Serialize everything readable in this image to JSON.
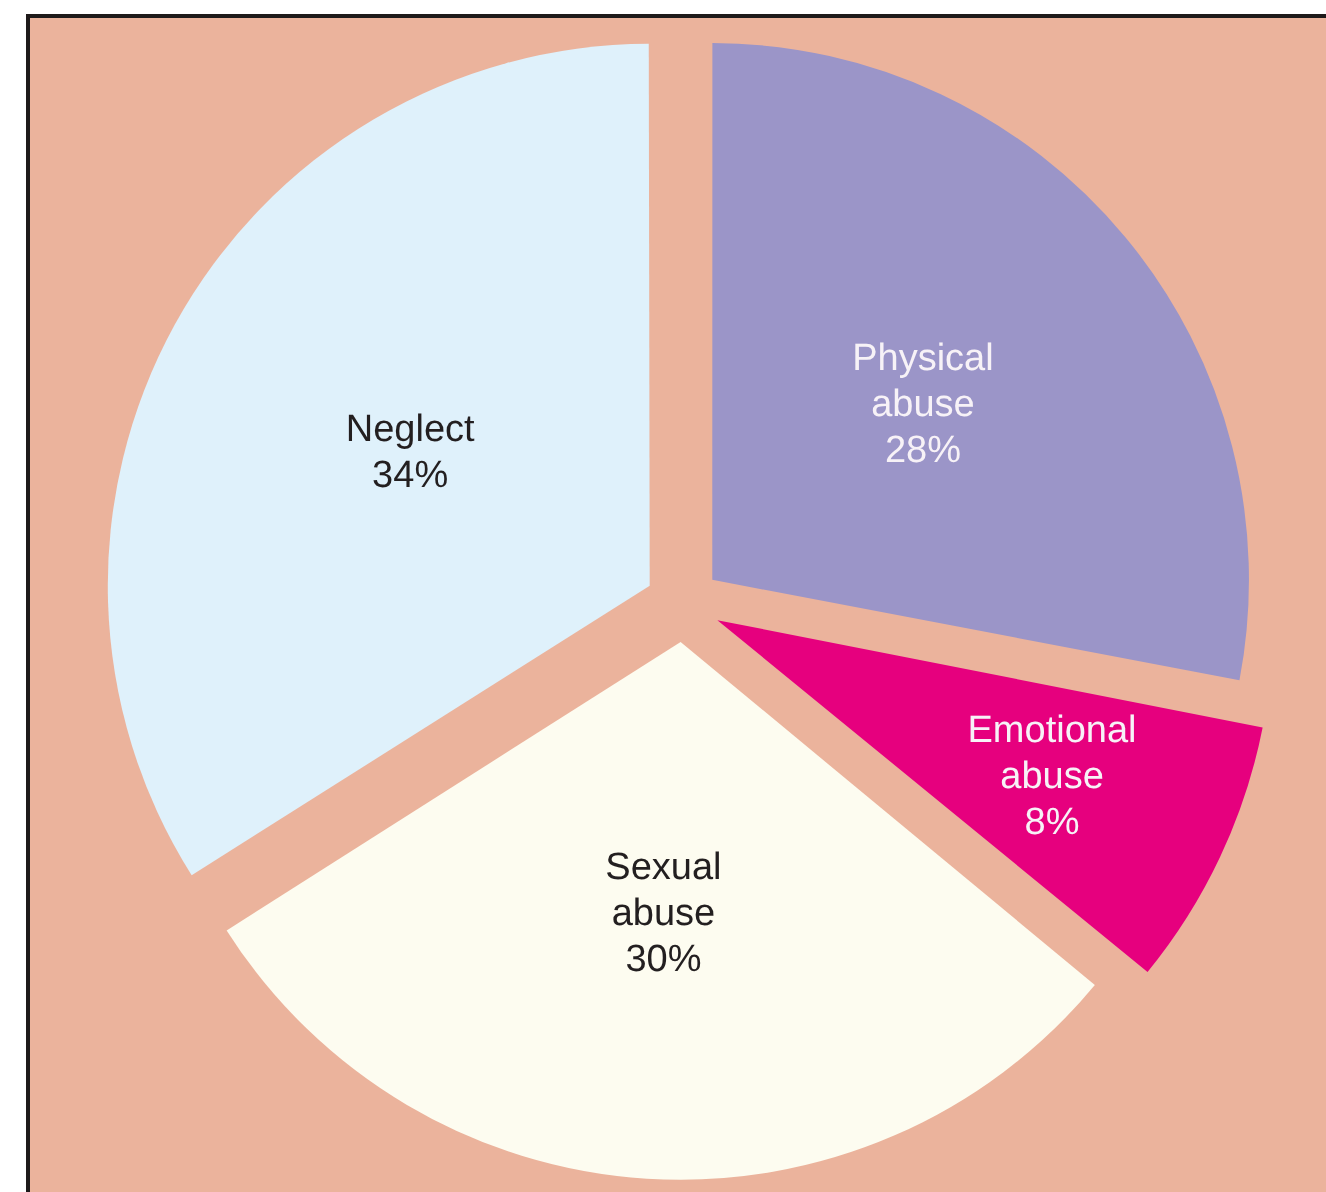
{
  "chart_data": {
    "type": "pie",
    "categories": [
      "Physical abuse",
      "Emotional abuse",
      "Sexual abuse",
      "Neglect"
    ],
    "values": [
      28,
      8,
      30,
      34
    ],
    "value_labels": [
      "28%",
      "8%",
      "30%",
      "34%"
    ],
    "colors": [
      "#9b95c8",
      "#e6007e",
      "#fdfcf0",
      "#dff1fb"
    ]
  }
}
